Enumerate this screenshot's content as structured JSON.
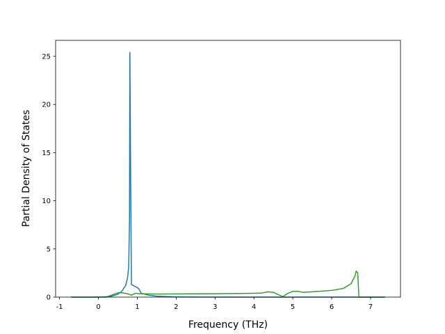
{
  "chart_data": {
    "type": "line",
    "xlabel": "Frequency (THz)",
    "ylabel": "Partial Density of States",
    "xlim": [
      -1.1,
      7.77
    ],
    "ylim": [
      0,
      26.66
    ],
    "xticks": [
      -1,
      0,
      1,
      2,
      3,
      4,
      5,
      6,
      7
    ],
    "yticks": [
      0,
      5,
      10,
      15,
      20,
      25
    ],
    "series": [
      {
        "color": "#1f77b4",
        "x": [
          -0.7,
          0.0,
          0.3,
          0.5,
          0.6,
          0.7,
          0.75,
          0.78,
          0.8,
          0.81,
          0.83,
          0.85,
          0.9,
          1.0,
          1.05,
          1.1,
          1.3,
          1.5,
          2.0,
          3.0,
          5.0,
          7.37
        ],
        "values": [
          0,
          0,
          0.05,
          0.3,
          0.6,
          1.2,
          2,
          3.2,
          8,
          25.4,
          12,
          1.3,
          1.2,
          1.0,
          0.8,
          0.4,
          0.2,
          0.1,
          0.02,
          0,
          0,
          0
        ]
      },
      {
        "color": "#2ca02c",
        "x": [
          -0.7,
          0.2,
          0.4,
          0.5,
          0.6,
          0.75,
          0.85,
          0.95,
          1.1,
          1.5,
          2.0,
          3.0,
          4.0,
          4.2,
          4.35,
          4.5,
          4.6,
          4.75,
          4.85,
          5.0,
          5.15,
          5.25,
          5.5,
          6.0,
          6.3,
          6.5,
          6.6,
          6.63,
          6.67,
          6.7,
          7.37
        ],
        "values": [
          0,
          0,
          0.3,
          0.45,
          0.45,
          0.35,
          0.2,
          0.4,
          0.35,
          0.32,
          0.33,
          0.35,
          0.4,
          0.42,
          0.55,
          0.5,
          0.3,
          0.05,
          0.35,
          0.6,
          0.6,
          0.5,
          0.55,
          0.7,
          0.9,
          1.4,
          2.2,
          2.7,
          2.5,
          0,
          0
        ]
      }
    ]
  }
}
